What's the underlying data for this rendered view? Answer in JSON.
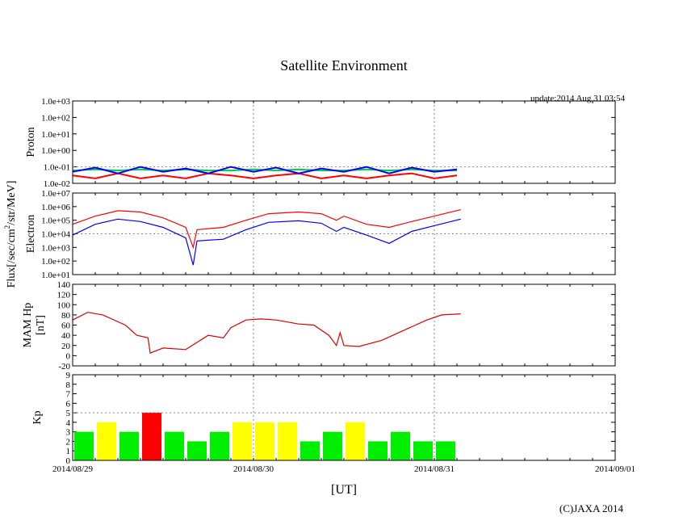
{
  "title": "Satellite Environment",
  "update": "update:2014 Aug 31 03:54",
  "copyright": "(C)JAXA 2014",
  "flux_label": "Flux[/sec/cm",
  "flux_sup": "2",
  "flux_label2": "/str/MeV]",
  "xlabel": "[UT]",
  "chart_data": [
    {
      "type": "line",
      "name": "Proton",
      "ylabel": "Proton",
      "yscale": "log",
      "ylim": [
        0.01,
        1000
      ],
      "yticks": [
        "1.0e-02",
        "1.0e-01",
        "1.0e+00",
        "1.0e+01",
        "1.0e+02",
        "1.0e+03"
      ],
      "x_hours_step": 3,
      "series": [
        {
          "color": "#ff0000",
          "values": [
            0.03,
            0.02,
            0.04,
            0.02,
            0.03,
            0.02,
            0.04,
            0.03,
            0.02,
            0.03,
            0.04,
            0.02,
            0.03,
            0.02,
            0.03,
            0.04,
            0.02,
            0.03
          ]
        },
        {
          "color": "#00cc44",
          "values": [
            0.06,
            0.07,
            0.06,
            0.07,
            0.06,
            0.07,
            0.06,
            0.06,
            0.07,
            0.06,
            0.07,
            0.06,
            0.06,
            0.07,
            0.06,
            0.07,
            0.06,
            0.06
          ]
        },
        {
          "color": "#0000ff",
          "values": [
            0.05,
            0.09,
            0.04,
            0.1,
            0.05,
            0.08,
            0.04,
            0.1,
            0.05,
            0.09,
            0.04,
            0.08,
            0.05,
            0.1,
            0.04,
            0.09,
            0.05,
            0.07
          ]
        }
      ]
    },
    {
      "type": "line",
      "name": "Electron",
      "ylabel": "Electron",
      "yscale": "log",
      "ylim": [
        10,
        10000000
      ],
      "yticks": [
        "1.0e+01",
        "1.0e+02",
        "1.0e+03",
        "1.0e+04",
        "1.0e+05",
        "1.0e+06",
        "1.0e+07"
      ],
      "x_hours": [
        0,
        3,
        6,
        9,
        12,
        15,
        16,
        16.5,
        20,
        23,
        26,
        30,
        33,
        35,
        36,
        39,
        42,
        45,
        48,
        51.5
      ],
      "series": [
        {
          "color": "#ff0000",
          "values": [
            50000,
            200000,
            500000,
            400000,
            150000,
            30000,
            1000,
            20000,
            30000,
            100000,
            300000,
            400000,
            300000,
            100000,
            200000,
            50000,
            30000,
            80000,
            200000,
            600000
          ]
        },
        {
          "color": "#0000ff",
          "values": [
            8000,
            50000,
            120000,
            80000,
            30000,
            5000,
            50,
            3000,
            4000,
            20000,
            70000,
            90000,
            60000,
            15000,
            30000,
            8000,
            2000,
            15000,
            40000,
            120000
          ]
        }
      ]
    },
    {
      "type": "line",
      "name": "MAM Hp",
      "ylabel": "MAM Hp",
      "ylabel2": "[nT]",
      "ylim": [
        -20,
        140
      ],
      "yticks": [
        "-20",
        "0",
        "20",
        "40",
        "60",
        "80",
        "100",
        "120",
        "140"
      ],
      "x_hours": [
        0,
        2,
        4,
        7,
        8.5,
        10,
        10.3,
        12,
        15,
        18,
        20,
        21,
        23,
        25,
        27,
        30,
        32,
        34,
        35,
        35.5,
        36,
        38,
        41,
        44,
        47,
        49,
        51.5
      ],
      "series": [
        {
          "color": "#dd0000",
          "values": [
            70,
            85,
            80,
            60,
            40,
            35,
            5,
            15,
            12,
            40,
            35,
            55,
            70,
            72,
            70,
            62,
            60,
            40,
            20,
            45,
            20,
            18,
            30,
            50,
            70,
            80,
            82
          ]
        }
      ]
    },
    {
      "type": "bar",
      "name": "Kp",
      "ylabel": "Kp",
      "ylim": [
        0,
        9
      ],
      "yticks": [
        "0",
        "1",
        "2",
        "3",
        "4",
        "5",
        "6",
        "7",
        "8",
        "9"
      ],
      "bar_hours": 3,
      "values": [
        3,
        4,
        3,
        5,
        3,
        2,
        3,
        4,
        4,
        4,
        2,
        3,
        4,
        2,
        3,
        2,
        2
      ],
      "colors": {
        "low": "#00ee00",
        "mid": "#ffff00",
        "high": "#ff0000"
      }
    }
  ],
  "xticks": [
    "2014/08/29",
    "2014/08/30",
    "2014/08/31",
    "2014/09/01"
  ]
}
